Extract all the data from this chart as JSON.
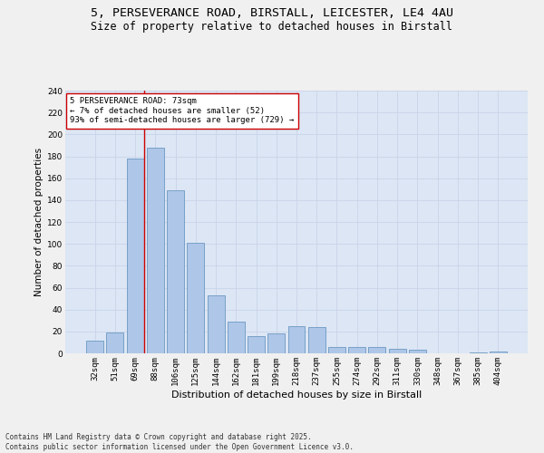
{
  "title1": "5, PERSEVERANCE ROAD, BIRSTALL, LEICESTER, LE4 4AU",
  "title2": "Size of property relative to detached houses in Birstall",
  "xlabel": "Distribution of detached houses by size in Birstall",
  "ylabel": "Number of detached properties",
  "categories": [
    "32sqm",
    "51sqm",
    "69sqm",
    "88sqm",
    "106sqm",
    "125sqm",
    "144sqm",
    "162sqm",
    "181sqm",
    "199sqm",
    "218sqm",
    "237sqm",
    "255sqm",
    "274sqm",
    "292sqm",
    "311sqm",
    "330sqm",
    "348sqm",
    "367sqm",
    "385sqm",
    "404sqm"
  ],
  "values": [
    12,
    19,
    178,
    188,
    149,
    101,
    53,
    29,
    16,
    18,
    25,
    24,
    6,
    6,
    6,
    4,
    3,
    0,
    0,
    1,
    2
  ],
  "bar_color": "#aec6e8",
  "bar_edge_color": "#5b8db8",
  "vline_x_index": 2,
  "vline_color": "#cc0000",
  "annotation_text": "5 PERSEVERANCE ROAD: 73sqm\n← 7% of detached houses are smaller (52)\n93% of semi-detached houses are larger (729) →",
  "annotation_box_color": "#ffffff",
  "annotation_box_edge_color": "#cc0000",
  "ylim": [
    0,
    240
  ],
  "yticks": [
    0,
    20,
    40,
    60,
    80,
    100,
    120,
    140,
    160,
    180,
    200,
    220,
    240
  ],
  "grid_color": "#c8d4e8",
  "bg_color": "#dce6f5",
  "fig_bg_color": "#f0f0f0",
  "footer_text": "Contains HM Land Registry data © Crown copyright and database right 2025.\nContains public sector information licensed under the Open Government Licence v3.0.",
  "title1_fontsize": 9.5,
  "title2_fontsize": 8.5,
  "xlabel_fontsize": 8,
  "ylabel_fontsize": 7.5,
  "tick_fontsize": 6.5,
  "annotation_fontsize": 6.5,
  "footer_fontsize": 5.5
}
